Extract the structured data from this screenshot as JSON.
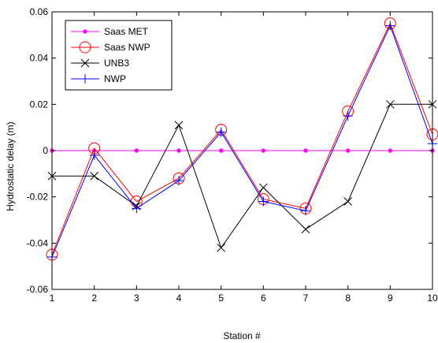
{
  "chart_data": {
    "type": "line",
    "title": "",
    "xlabel": "Station #",
    "ylabel": "Hydrostatic delay (m)",
    "xlim": [
      1,
      10
    ],
    "ylim": [
      -0.06,
      0.06
    ],
    "x": [
      1,
      2,
      3,
      4,
      5,
      6,
      7,
      8,
      9,
      10
    ],
    "x_ticks": [
      "1",
      "2",
      "3",
      "4",
      "5",
      "6",
      "7",
      "8",
      "9",
      "10"
    ],
    "y_ticks": [
      {
        "value": -0.06,
        "label": "-0.06"
      },
      {
        "value": -0.04,
        "label": "-0.04"
      },
      {
        "value": -0.02,
        "label": "-0.02"
      },
      {
        "value": 0,
        "label": "0"
      },
      {
        "value": 0.02,
        "label": "0.02"
      },
      {
        "value": 0.04,
        "label": "0.04"
      },
      {
        "value": 0.06,
        "label": "0.06"
      }
    ],
    "grid": false,
    "legend_position": "top-left",
    "series": [
      {
        "name": "Saas MET",
        "color": "#ff00ff",
        "marker": "dot",
        "values": [
          0,
          0,
          0,
          0,
          0,
          0,
          0,
          0,
          0,
          0
        ]
      },
      {
        "name": "Saas NWP",
        "color": "#ff0000",
        "marker": "circle",
        "values": [
          -0.045,
          0.001,
          -0.022,
          -0.012,
          0.009,
          -0.021,
          -0.025,
          0.017,
          0.055,
          0.007
        ]
      },
      {
        "name": "UNB3",
        "color": "#000000",
        "marker": "x",
        "values": [
          -0.011,
          -0.011,
          -0.024,
          0.011,
          -0.042,
          -0.016,
          -0.034,
          -0.022,
          0.02,
          0.02
        ]
      },
      {
        "name": "NWP",
        "color": "#0000ff",
        "marker": "plus",
        "values": [
          -0.046,
          -0.002,
          -0.025,
          -0.013,
          0.008,
          -0.022,
          -0.026,
          0.015,
          0.054,
          0.003
        ]
      }
    ]
  }
}
